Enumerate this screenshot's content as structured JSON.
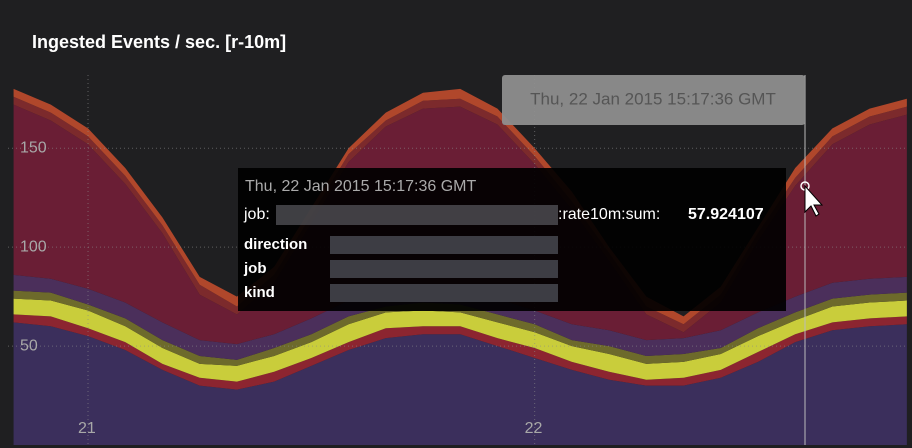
{
  "chart_data": {
    "type": "stacked_area",
    "title": "Ingested Events / sec. [r-10m]",
    "x": [
      -4,
      -2,
      0,
      2,
      4,
      6,
      8,
      10,
      12,
      14,
      16,
      18,
      20,
      22,
      24,
      26,
      28,
      30,
      32,
      34,
      36,
      38,
      40,
      42,
      44
    ],
    "xlim": [
      -4.3,
      43.9
    ],
    "xticks": [
      {
        "value": 0,
        "label": "21"
      },
      {
        "value": 24,
        "label": "22"
      }
    ],
    "ylim": [
      0,
      187
    ],
    "yticks": [
      50,
      100,
      150
    ],
    "grid": true,
    "series": [
      {
        "color": "#3b2f5c",
        "values": [
          62,
          60,
          55,
          48,
          38,
          30,
          28,
          32,
          40,
          48,
          54,
          56,
          56,
          50,
          44,
          38,
          33,
          30,
          30,
          34,
          42,
          52,
          58,
          60,
          61
        ]
      },
      {
        "color": "#8c2530",
        "values": [
          4,
          5,
          4,
          4,
          3,
          4,
          4,
          5,
          4,
          4,
          5,
          4,
          4,
          4,
          5,
          4,
          4,
          3,
          4,
          4,
          5,
          4,
          4,
          4,
          4
        ]
      },
      {
        "color": "#c9cd3b",
        "values": [
          8,
          8,
          9,
          8,
          8,
          7,
          8,
          8,
          8,
          9,
          8,
          8,
          7,
          8,
          8,
          8,
          9,
          8,
          8,
          8,
          8,
          7,
          8,
          8,
          8
        ]
      },
      {
        "color": "#6d6a2b",
        "values": [
          4,
          4,
          3,
          4,
          4,
          4,
          3,
          4,
          4,
          4,
          3,
          4,
          4,
          4,
          4,
          3,
          4,
          4,
          4,
          3,
          4,
          4,
          4,
          4,
          4
        ]
      },
      {
        "color": "#4b2f5b",
        "values": [
          8,
          7,
          8,
          8,
          9,
          8,
          8,
          7,
          8,
          8,
          9,
          8,
          8,
          8,
          7,
          8,
          8,
          8,
          8,
          9,
          8,
          8,
          8,
          8,
          8
        ]
      },
      {
        "color": "#6a1e35",
        "values": [
          86,
          80,
          73,
          60,
          45,
          23,
          15,
          26,
          48,
          70,
          82,
          90,
          92,
          88,
          74,
          58,
          35,
          13,
          3,
          14,
          36,
          56,
          70,
          78,
          82
        ]
      },
      {
        "color": "#7c2a2c",
        "values": [
          4,
          4,
          4,
          4,
          4,
          5,
          4,
          4,
          4,
          4,
          3,
          4,
          4,
          4,
          4,
          4,
          4,
          4,
          4,
          4,
          4,
          4,
          4,
          4,
          4
        ]
      },
      {
        "color": "#b0472b",
        "values": [
          4,
          4,
          4,
          4,
          4,
          4,
          5,
          4,
          4,
          3,
          4,
          4,
          5,
          4,
          4,
          5,
          3,
          5,
          4,
          4,
          3,
          5,
          4,
          4,
          4
        ]
      }
    ],
    "hover_time": "Thu, 22 Jan 2015 15:17:36 GMT",
    "tooltip": {
      "time": "Thu, 22 Jan 2015 15:17:36 GMT",
      "metric_prefix": "job:",
      "metric_suffix": ":rate10m:sum:",
      "value": 57.924107,
      "labels": [
        "direction",
        "job",
        "kind"
      ]
    }
  }
}
